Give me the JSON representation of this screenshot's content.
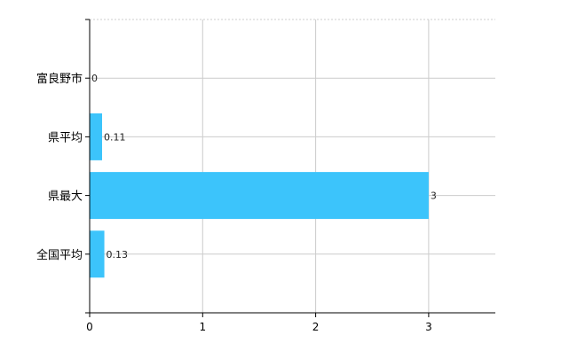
{
  "chart_data": {
    "type": "bar",
    "orientation": "horizontal",
    "categories": [
      "富良野市",
      "県平均",
      "県最大",
      "全国平均"
    ],
    "values": [
      0,
      0.11,
      3,
      0.13
    ],
    "data_labels": [
      "0",
      "0.11",
      "3",
      "0.13"
    ],
    "xlim": [
      0,
      3.59
    ],
    "xticks": [
      0,
      1,
      2,
      3
    ],
    "xtick_labels": [
      "0",
      "1",
      "2",
      "3"
    ],
    "title": "",
    "xlabel": "",
    "ylabel": "",
    "grid": true,
    "bar_color": "#3cc4fb"
  }
}
